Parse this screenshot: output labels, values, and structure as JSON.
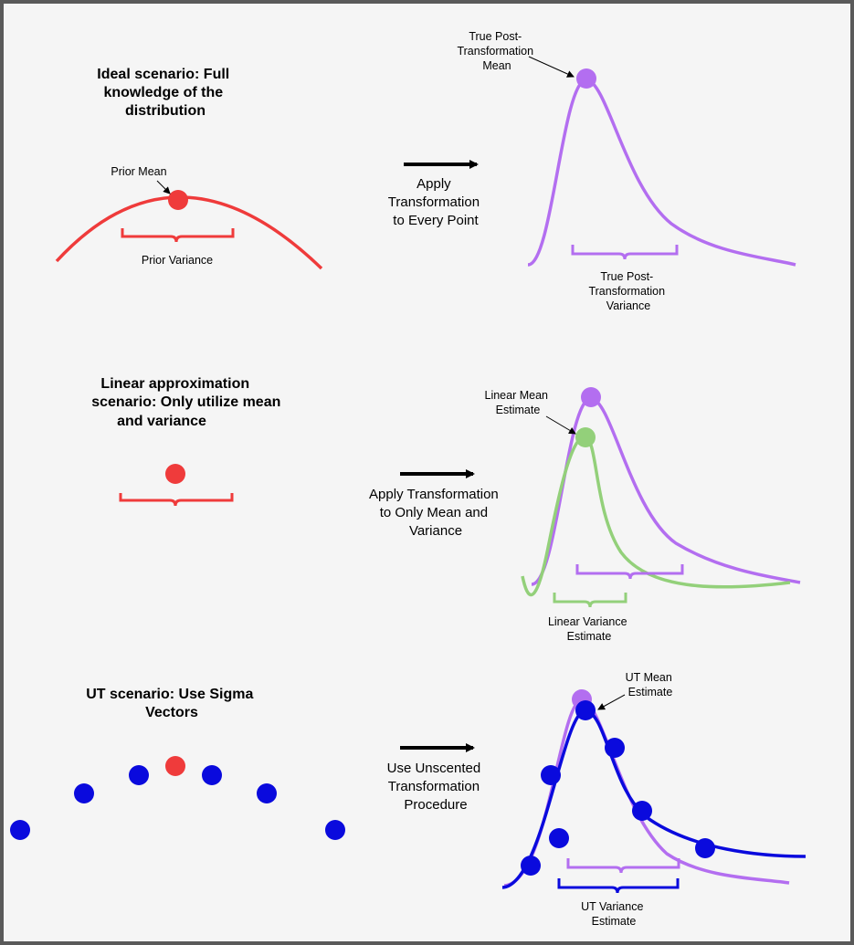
{
  "colors": {
    "frame": "#5a5a5a",
    "background": "#f5f5f5",
    "prior_red": "#ef3b3b",
    "true_purple": "#b36ef0",
    "linear_green": "#93d07a",
    "ut_blue": "#0a0add",
    "arrow": "#000000"
  },
  "panels": {
    "ideal": {
      "title_lines": [
        "Ideal scenario: Full",
        "knowledge of the",
        "distribution"
      ],
      "prior_mean_label": "Prior Mean",
      "prior_variance_label": "Prior Variance",
      "arrow_label_lines": [
        "Apply",
        "Transformation",
        "to Every Point"
      ],
      "true_mean_label_lines": [
        "True Post-",
        "Transformation",
        "Mean"
      ],
      "true_variance_label_lines": [
        "True Post-",
        "Transformation",
        "Variance"
      ]
    },
    "linear": {
      "title_lines": [
        "Linear approximation",
        "scenario: Only utilize mean",
        "and variance"
      ],
      "arrow_label_lines": [
        "Apply Transformation",
        "to Only Mean and",
        "Variance"
      ],
      "mean_estimate_label_lines": [
        "Linear Mean",
        "Estimate"
      ],
      "variance_estimate_label_lines": [
        "Linear Variance",
        "Estimate"
      ]
    },
    "ut": {
      "title_lines": [
        "UT scenario: Use Sigma",
        "Vectors"
      ],
      "arrow_label_lines": [
        "Use Unscented",
        "Transformation",
        "Procedure"
      ],
      "mean_estimate_label_lines": [
        "UT Mean",
        "Estimate"
      ],
      "variance_estimate_label_lines": [
        "UT Variance",
        "Estimate"
      ]
    }
  }
}
